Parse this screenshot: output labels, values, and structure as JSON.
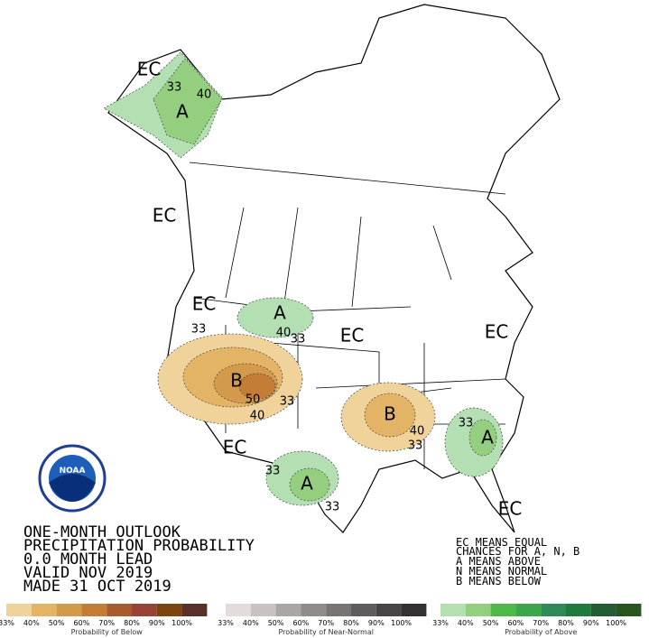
{
  "map_labels": [
    "EC",
    "33",
    "40",
    "A",
    "EC",
    "EC",
    "33",
    "A",
    "40",
    "33",
    "EC",
    "EC",
    "B",
    "50",
    "33",
    "40",
    "B",
    "40",
    "33",
    "33",
    "A",
    "EC",
    "33",
    "A",
    "33",
    "EC"
  ],
  "title": [
    "ONE-MONTH OUTLOOK",
    "PRECIPITATION PROBABILITY",
    "0.0 MONTH LEAD",
    "VALID NOV 2019",
    "MADE 31 OCT 2019"
  ],
  "notes": [
    "EC MEANS EQUAL",
    "CHANCES FOR A, N, B",
    "A MEANS ABOVE",
    "N MEANS NORMAL",
    "B MEANS BELOW"
  ],
  "logo": "NOAA",
  "legend": [
    {
      "caption": "Probability of Below",
      "labels": [
        "33%",
        "40%",
        "50%",
        "60%",
        "70%",
        "80%",
        "90%",
        "100%"
      ],
      "colors": [
        "#efd39b",
        "#e3b466",
        "#d39a4b",
        "#c47c37",
        "#a85b2e",
        "#98433a",
        "#7a4511",
        "#593128"
      ]
    },
    {
      "caption": "Probability of Near-Normal",
      "labels": [
        "33%",
        "40%",
        "50%",
        "60%",
        "70%",
        "80%",
        "90%",
        "100%"
      ],
      "colors": [
        "#e2dcdc",
        "#c8c2c2",
        "#aaa6a6",
        "#908c8c",
        "#787474",
        "#5e5c5c",
        "#474545",
        "#333132"
      ]
    },
    {
      "caption": "Probability of Above",
      "labels": [
        "33%",
        "40%",
        "50%",
        "60%",
        "70%",
        "80%",
        "90%",
        "100%"
      ],
      "colors": [
        "#b3dfb3",
        "#94cf80",
        "#4eb848",
        "#3ca64d",
        "#2e8b57",
        "#1f7a3e",
        "#235b33",
        "#285420"
      ]
    }
  ]
}
